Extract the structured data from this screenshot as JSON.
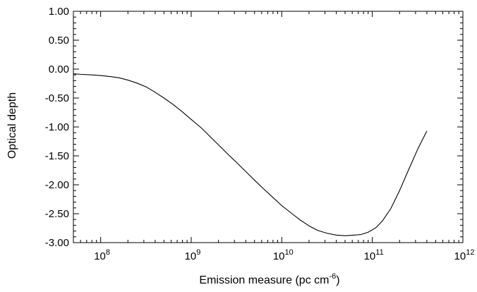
{
  "chart_data": {
    "type": "line",
    "title": "",
    "xlabel": "Emission measure (pc cm",
    "xlabel_superscript": "-6",
    "xlabel_suffix": ")",
    "ylabel": "Optical depth",
    "xscale": "log",
    "xlim": [
      50000000,
      1000000000000
    ],
    "ylim": [
      -3.0,
      1.0
    ],
    "grid": false,
    "legend": "none",
    "x_tick_labels": [
      {
        "base": "10",
        "exp": "8",
        "value": 100000000
      },
      {
        "base": "10",
        "exp": "9",
        "value": 1000000000
      },
      {
        "base": "10",
        "exp": "10",
        "value": 10000000000
      },
      {
        "base": "10",
        "exp": "11",
        "value": 100000000000
      },
      {
        "base": "10",
        "exp": "12",
        "value": 1000000000000
      }
    ],
    "y_tick_labels": [
      "1.00",
      "0.50",
      "0.00",
      "-0.50",
      "-1.00",
      "-1.50",
      "-2.00",
      "-2.50",
      "-3.00"
    ],
    "series": [
      {
        "color": "#000000",
        "x": [
          50000000,
          60000000,
          80000000,
          100000000,
          130000000,
          160000000,
          200000000,
          250000000,
          320000000,
          400000000,
          500000000,
          630000000,
          800000000,
          1000000000,
          1300000000,
          1600000000,
          2000000000,
          2500000000,
          3200000000,
          4000000000,
          5000000000,
          6300000000,
          8000000000,
          10000000000,
          13000000000,
          16000000000,
          20000000000,
          25000000000,
          32000000000,
          40000000000,
          50000000000,
          63000000000,
          75000000000,
          90000000000,
          110000000000,
          130000000000,
          160000000000,
          200000000000,
          250000000000,
          320000000000,
          400000000000
        ],
        "y": [
          -0.08,
          -0.09,
          -0.1,
          -0.11,
          -0.13,
          -0.15,
          -0.19,
          -0.24,
          -0.31,
          -0.4,
          -0.5,
          -0.61,
          -0.74,
          -0.87,
          -1.02,
          -1.16,
          -1.31,
          -1.46,
          -1.62,
          -1.77,
          -1.92,
          -2.07,
          -2.22,
          -2.36,
          -2.5,
          -2.61,
          -2.71,
          -2.79,
          -2.84,
          -2.87,
          -2.88,
          -2.87,
          -2.86,
          -2.82,
          -2.74,
          -2.62,
          -2.41,
          -2.1,
          -1.75,
          -1.37,
          -1.07
        ]
      }
    ]
  }
}
